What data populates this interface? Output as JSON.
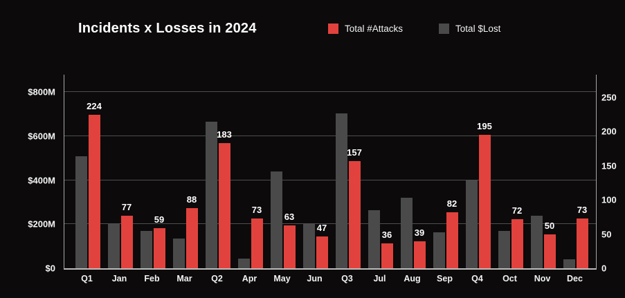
{
  "title": "Incidents x Losses in 2024",
  "legend": {
    "items": [
      {
        "label": "Total #Attacks",
        "color": "#e2423d"
      },
      {
        "label": "Total $Lost",
        "color": "#4a4a4a"
      }
    ]
  },
  "colors": {
    "background": "#0c0a0a",
    "attacks": "#e2423d",
    "losses": "#4a4a4a",
    "grid": "#4f4f4f",
    "axis": "#b5b5b5",
    "text": "#ffffff"
  },
  "chart_data": {
    "type": "bar",
    "title": "Incidents x Losses in 2024",
    "categories": [
      "Q1",
      "Jan",
      "Feb",
      "Mar",
      "Q2",
      "Apr",
      "May",
      "Jun",
      "Q3",
      "Jul",
      "Aug",
      "Sep",
      "Q4",
      "Oct",
      "Nov",
      "Dec"
    ],
    "series": [
      {
        "name": "Total #Attacks",
        "color": "#e2423d",
        "axis": "right",
        "values": [
          224,
          77,
          59,
          88,
          183,
          73,
          63,
          47,
          157,
          36,
          39,
          82,
          195,
          72,
          50,
          73
        ],
        "data_labels_shown": true
      },
      {
        "name": "Total $Lost",
        "color": "#4a4a4a",
        "axis": "left",
        "unit": "USD millions (estimated from bar heights)",
        "values": [
          510,
          200,
          170,
          135,
          665,
          45,
          440,
          200,
          705,
          265,
          320,
          165,
          400,
          170,
          240,
          40
        ],
        "data_labels_shown": false
      }
    ],
    "left_axis": {
      "tick_labels": [
        "$800M",
        "$600M",
        "$400M",
        "$200M",
        "$0"
      ],
      "tick_values": [
        800,
        600,
        400,
        200,
        0
      ],
      "range": [
        0,
        880
      ]
    },
    "right_axis": {
      "tick_labels": [
        "250",
        "200",
        "150",
        "100",
        "50",
        "0"
      ],
      "tick_values": [
        250,
        200,
        150,
        100,
        50,
        0
      ],
      "range": [
        0,
        283
      ]
    },
    "grid": true,
    "legend_position": "top"
  }
}
